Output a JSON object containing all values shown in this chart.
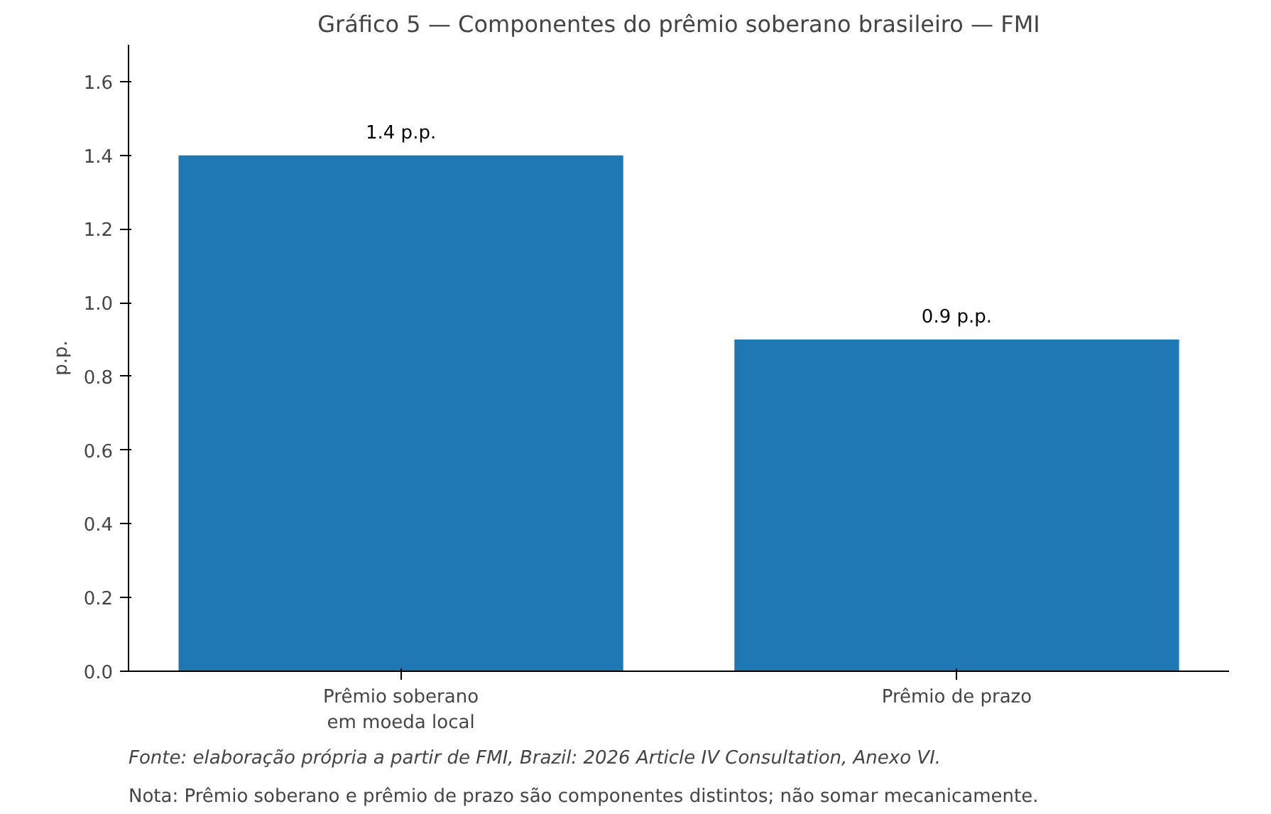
{
  "chart_data": {
    "type": "bar",
    "title": "Gráfico 5 — Componentes do prêmio soberano brasileiro — FMI",
    "ylabel": "p.p.",
    "categories": [
      "Prêmio soberano\nem moeda local",
      "Prêmio de prazo"
    ],
    "values": [
      1.4,
      0.9
    ],
    "color": "#1f77b4",
    "value_labels": [
      "1.4 p.p.",
      "0.9 p.p."
    ],
    "ylim": [
      0,
      1.7
    ],
    "yticks": [
      {
        "value": 0,
        "label": "0.0"
      },
      {
        "value": 0.2,
        "label": "0.2"
      },
      {
        "value": 0.4,
        "label": "0.4"
      },
      {
        "value": 0.6,
        "label": "0.6"
      },
      {
        "value": 0.8,
        "label": "0.8"
      },
      {
        "value": 1.0,
        "label": "1.0"
      },
      {
        "value": 1.2,
        "label": "1.2"
      },
      {
        "value": 1.4,
        "label": "1.4"
      },
      {
        "value": 1.6,
        "label": "1.6"
      }
    ],
    "grid": false,
    "annotations": [
      "Fonte: elaboração própria a partir de FMI, Brazil: 2026 Article IV Consultation, Anexo VI.",
      "Nota: Prêmio soberano e prêmio de prazo são componentes distintos; não somar mecanicamente."
    ]
  }
}
